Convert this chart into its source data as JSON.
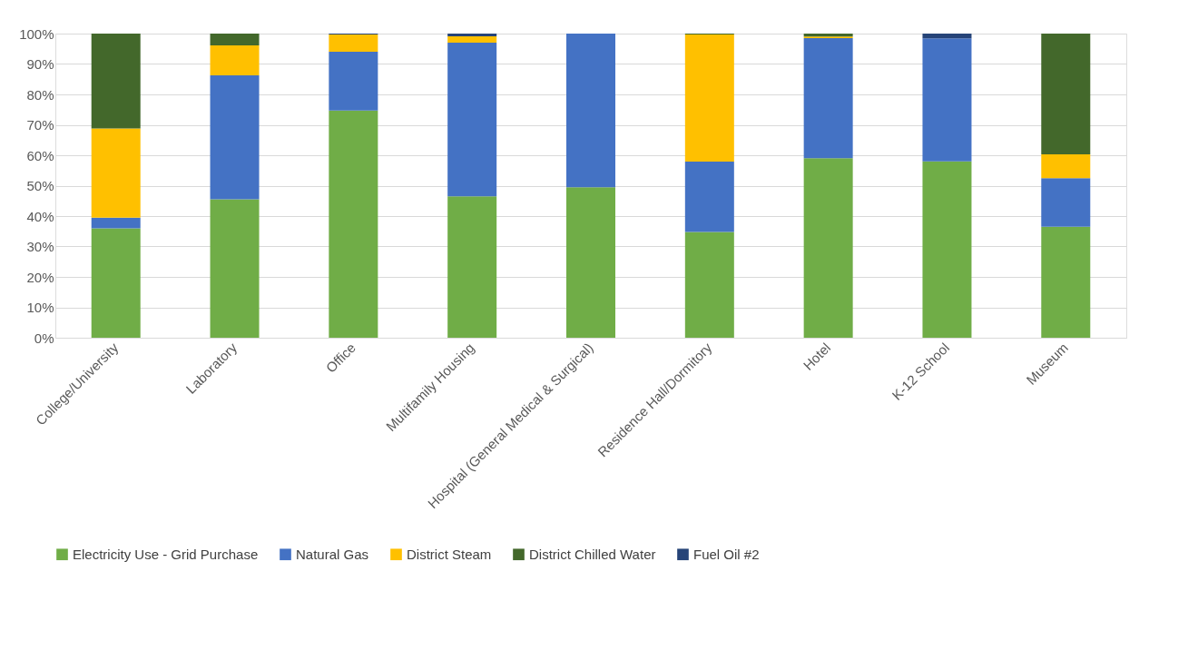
{
  "chart_data": {
    "type": "bar",
    "stacked": true,
    "categories": [
      "College/University",
      "Laboratory",
      "Office",
      "Multifamily Housing",
      "Hospital (General Medical & Surgical)",
      "Residence Hall/Dormitory",
      "Hotel",
      "K-12 School",
      "Museum"
    ],
    "series": [
      {
        "name": "Electricity Use - Grid Purchase",
        "color": "#70ad47",
        "values": [
          36,
          45.5,
          74.7,
          46.5,
          49.5,
          34.8,
          59,
          58,
          36.5
        ]
      },
      {
        "name": "Natural Gas",
        "color": "#4472c4",
        "values": [
          3.5,
          40.8,
          19.3,
          50.5,
          50.5,
          23.1,
          39.5,
          40.4,
          16
        ]
      },
      {
        "name": "District Steam",
        "color": "#ffc000",
        "values": [
          29.3,
          9.8,
          5.7,
          2.1,
          0,
          41.8,
          0.5,
          0,
          7.8
        ]
      },
      {
        "name": "District Chilled Water",
        "color": "#43682b",
        "values": [
          31.2,
          3.9,
          0,
          0,
          0,
          0.3,
          1,
          0,
          39.7
        ]
      },
      {
        "name": "Fuel Oil #2",
        "color": "#264478",
        "values": [
          0,
          0,
          0.3,
          0.9,
          0,
          0,
          0,
          1.6,
          0
        ]
      }
    ],
    "ylim": [
      0,
      100
    ],
    "yticks": [
      {
        "value": 0,
        "label": "0%"
      },
      {
        "value": 10,
        "label": "10%"
      },
      {
        "value": 20,
        "label": "20%"
      },
      {
        "value": 30,
        "label": "30%"
      },
      {
        "value": 40,
        "label": "40%"
      },
      {
        "value": 50,
        "label": "50%"
      },
      {
        "value": 60,
        "label": "60%"
      },
      {
        "value": 70,
        "label": "70%"
      },
      {
        "value": 80,
        "label": "80%"
      },
      {
        "value": 90,
        "label": "90%"
      },
      {
        "value": 100,
        "label": "100%"
      }
    ],
    "grid": "y",
    "legend": "bottom"
  }
}
